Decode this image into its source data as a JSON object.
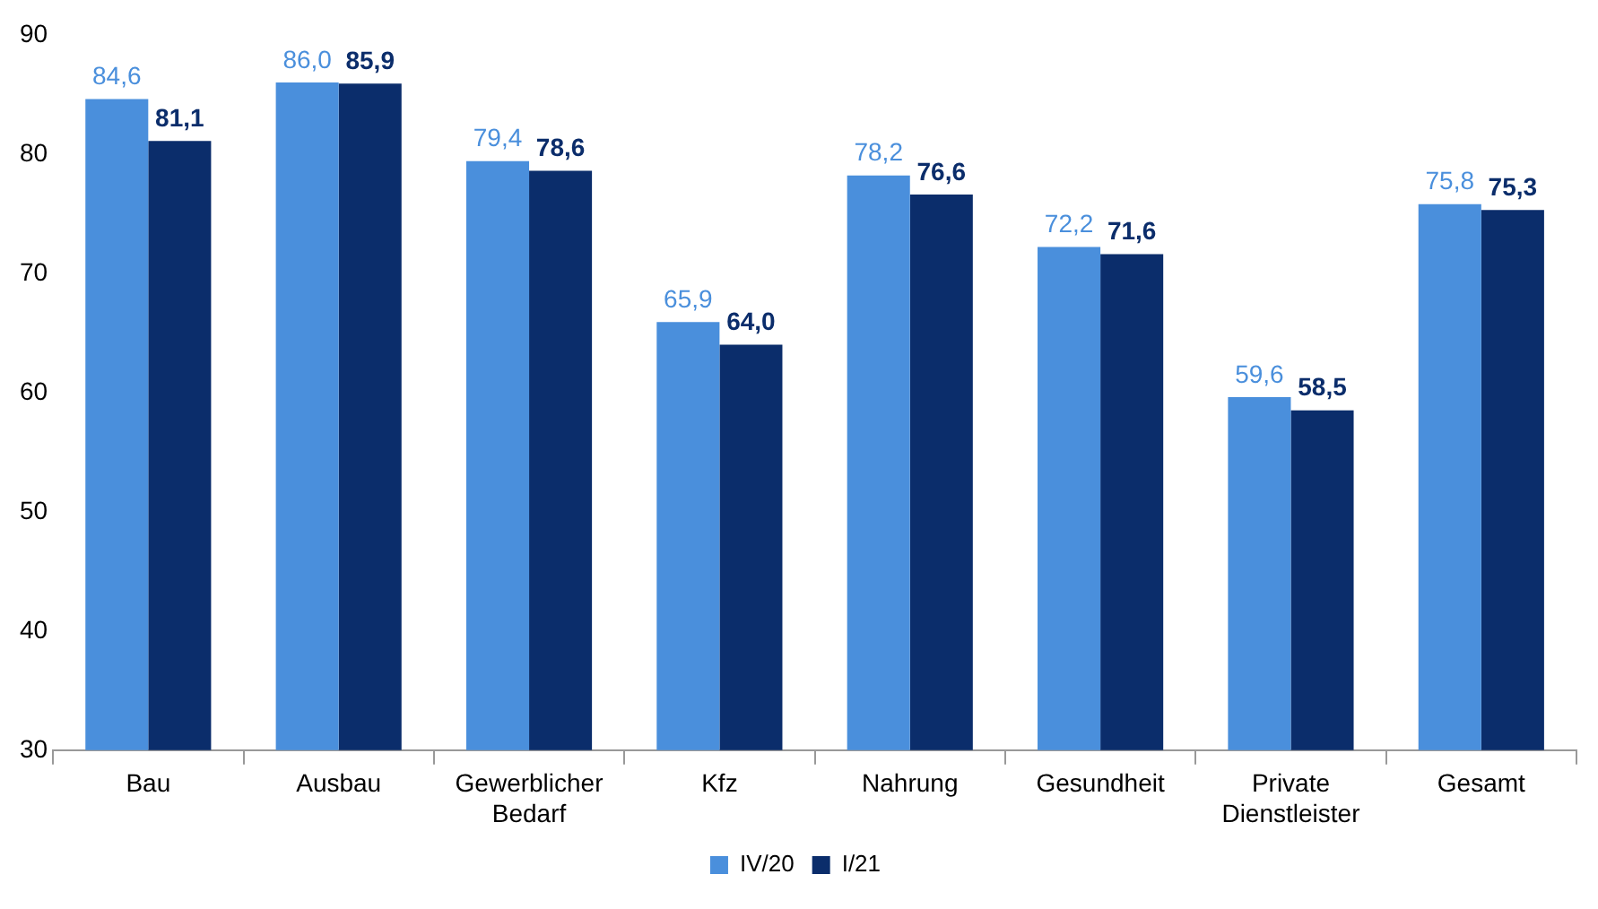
{
  "chart_data": {
    "type": "bar",
    "categories": [
      "Bau",
      "Ausbau",
      "Gewerblicher Bedarf",
      "Kfz",
      "Nahrung",
      "Gesundheit",
      "Private Dienstleister",
      "Gesamt"
    ],
    "series": [
      {
        "name": "IV/20",
        "color": "#4a8fdc",
        "values": [
          84.6,
          86.0,
          79.4,
          65.9,
          78.2,
          72.2,
          59.6,
          75.8
        ],
        "value_labels": [
          "84,6",
          "86,0",
          "79,4",
          "65,9",
          "78,2",
          "72,2",
          "59,6",
          "75,8"
        ]
      },
      {
        "name": "I/21",
        "color": "#0b2d6b",
        "values": [
          81.1,
          85.9,
          78.6,
          64.0,
          76.6,
          71.6,
          58.5,
          75.3
        ],
        "value_labels": [
          "81,1",
          "85,9",
          "78,6",
          "64,0",
          "76,6",
          "71,6",
          "58,5",
          "75,3"
        ]
      }
    ],
    "ylim": [
      30,
      90
    ],
    "yticks": [
      30,
      40,
      50,
      60,
      70,
      80,
      90
    ],
    "grid": false,
    "legend": "bottom"
  }
}
